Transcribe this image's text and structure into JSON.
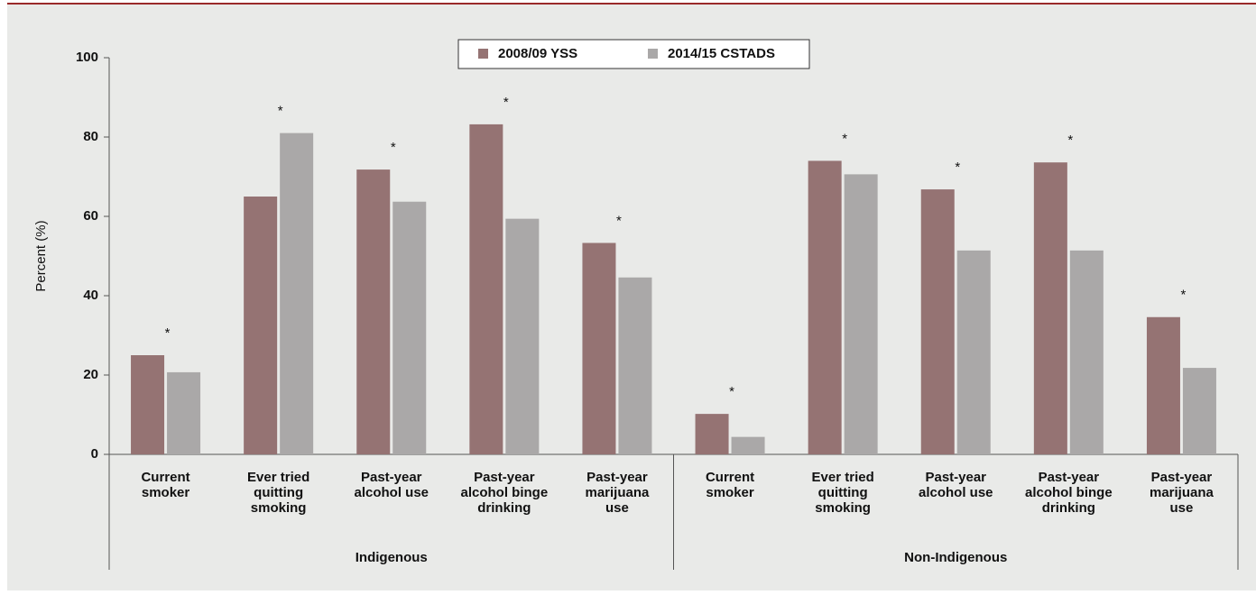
{
  "chart_data": {
    "type": "bar",
    "y_label": "Percent (%)",
    "categories": [
      [
        "Current",
        "smoker"
      ],
      [
        "Ever tried",
        "quitting",
        "smoking"
      ],
      [
        "Past-year",
        "alcohol use"
      ],
      [
        "Past-year",
        "alcohol binge",
        "drinking"
      ],
      [
        "Past-year",
        "marijuana",
        "use"
      ],
      [
        "Current",
        "smoker"
      ],
      [
        "Ever tried",
        "quitting",
        "smoking"
      ],
      [
        "Past-year",
        "alcohol use"
      ],
      [
        "Past-year",
        "alcohol binge",
        "drinking"
      ],
      [
        "Past-year",
        "marijuana",
        "use"
      ]
    ],
    "groups": [
      {
        "name": "Indigenous",
        "size": 5
      },
      {
        "name": "Non-Indigenous",
        "size": 5
      }
    ],
    "series": [
      {
        "name": "2008/09 YSS",
        "color": "#957373",
        "values": [
          25,
          65,
          71.8,
          83.2,
          53.3,
          10.2,
          74,
          66.8,
          73.6,
          34.6
        ]
      },
      {
        "name": "2014/15 CSTADS",
        "color": "#aaa8a8",
        "values": [
          20.7,
          81,
          63.7,
          59.4,
          44.6,
          4.4,
          70.6,
          51.4,
          51.4,
          21.8
        ]
      }
    ],
    "significance_markers": [
      "*",
      "*",
      "*",
      "*",
      "*",
      "*",
      "*",
      "*",
      "*",
      "*"
    ],
    "ylim": [
      0,
      100
    ],
    "yticks": [
      0,
      20,
      40,
      60,
      80,
      100
    ],
    "grid": false
  }
}
